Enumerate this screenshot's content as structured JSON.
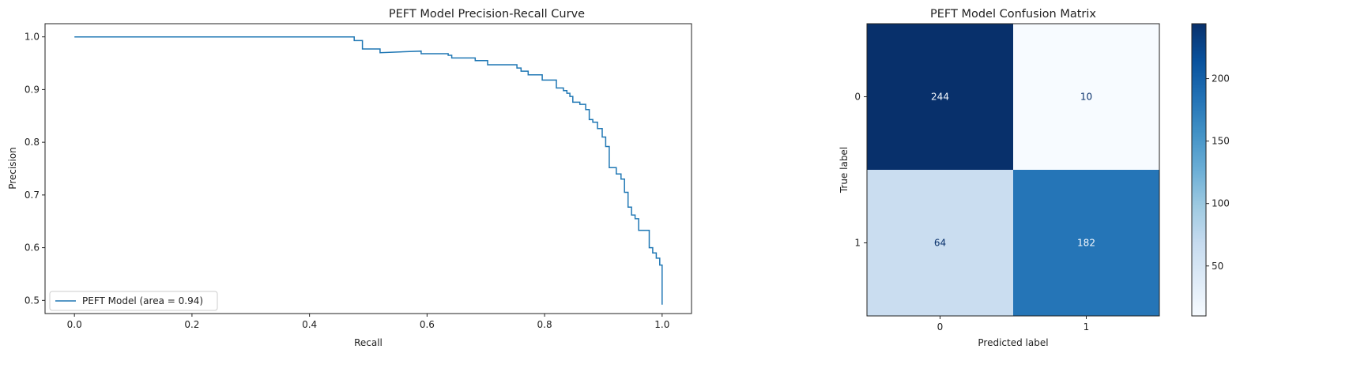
{
  "chart_data": [
    {
      "type": "line",
      "title": "PEFT Model Precision-Recall Curve",
      "xlabel": "Recall",
      "ylabel": "Precision",
      "xlim": [
        -0.05,
        1.05
      ],
      "ylim": [
        0.475,
        1.025
      ],
      "xticks": [
        0.0,
        0.2,
        0.4,
        0.6,
        0.8,
        1.0
      ],
      "xtick_labels": [
        "0.0",
        "0.2",
        "0.4",
        "0.6",
        "0.8",
        "1.0"
      ],
      "yticks": [
        0.5,
        0.6,
        0.7,
        0.8,
        0.9,
        1.0
      ],
      "ytick_labels": [
        "0.5",
        "0.6",
        "0.7",
        "0.8",
        "0.9",
        "1.0"
      ],
      "grid": false,
      "legend_position": "lower-left",
      "line_color": "#1f77b4",
      "series": [
        {
          "name": "PEFT Model (area = 0.94)",
          "x": [
            0.0,
            0.476,
            0.476,
            0.49,
            0.49,
            0.52,
            0.52,
            0.59,
            0.59,
            0.636,
            0.636,
            0.642,
            0.642,
            0.682,
            0.682,
            0.703,
            0.703,
            0.753,
            0.753,
            0.76,
            0.76,
            0.772,
            0.772,
            0.796,
            0.796,
            0.82,
            0.82,
            0.832,
            0.832,
            0.838,
            0.838,
            0.843,
            0.843,
            0.848,
            0.848,
            0.86,
            0.86,
            0.87,
            0.87,
            0.876,
            0.876,
            0.882,
            0.882,
            0.89,
            0.89,
            0.898,
            0.898,
            0.904,
            0.904,
            0.91,
            0.91,
            0.922,
            0.922,
            0.93,
            0.93,
            0.936,
            0.936,
            0.942,
            0.942,
            0.948,
            0.948,
            0.954,
            0.954,
            0.96,
            0.96,
            0.978,
            0.978,
            0.984,
            0.984,
            0.99,
            0.99,
            0.996,
            0.996,
            1.0,
            1.0
          ],
          "y": [
            1.0,
            1.0,
            0.993,
            0.993,
            0.977,
            0.977,
            0.97,
            0.973,
            0.968,
            0.968,
            0.965,
            0.965,
            0.96,
            0.96,
            0.955,
            0.955,
            0.947,
            0.947,
            0.941,
            0.941,
            0.935,
            0.935,
            0.928,
            0.928,
            0.918,
            0.918,
            0.903,
            0.903,
            0.898,
            0.898,
            0.893,
            0.893,
            0.887,
            0.887,
            0.876,
            0.876,
            0.872,
            0.872,
            0.862,
            0.862,
            0.843,
            0.843,
            0.838,
            0.838,
            0.826,
            0.826,
            0.81,
            0.81,
            0.792,
            0.792,
            0.752,
            0.752,
            0.74,
            0.74,
            0.73,
            0.73,
            0.705,
            0.705,
            0.677,
            0.677,
            0.662,
            0.662,
            0.655,
            0.655,
            0.633,
            0.633,
            0.6,
            0.6,
            0.59,
            0.59,
            0.58,
            0.58,
            0.567,
            0.567,
            0.492
          ]
        }
      ]
    },
    {
      "type": "heatmap",
      "title": "PEFT Model Confusion Matrix",
      "xlabel": "Predicted label",
      "ylabel": "True label",
      "x_categories": [
        "0",
        "1"
      ],
      "y_categories": [
        "0",
        "1"
      ],
      "values": [
        [
          244,
          10
        ],
        [
          64,
          182
        ]
      ],
      "value_labels": [
        [
          "244",
          "10"
        ],
        [
          "64",
          "182"
        ]
      ],
      "colormap": "Blues",
      "color_range": [
        10,
        244
      ],
      "colorbar_ticks": [
        50,
        100,
        150,
        200
      ],
      "colorbar_tick_labels": [
        "50",
        "100",
        "150",
        "200"
      ]
    }
  ]
}
